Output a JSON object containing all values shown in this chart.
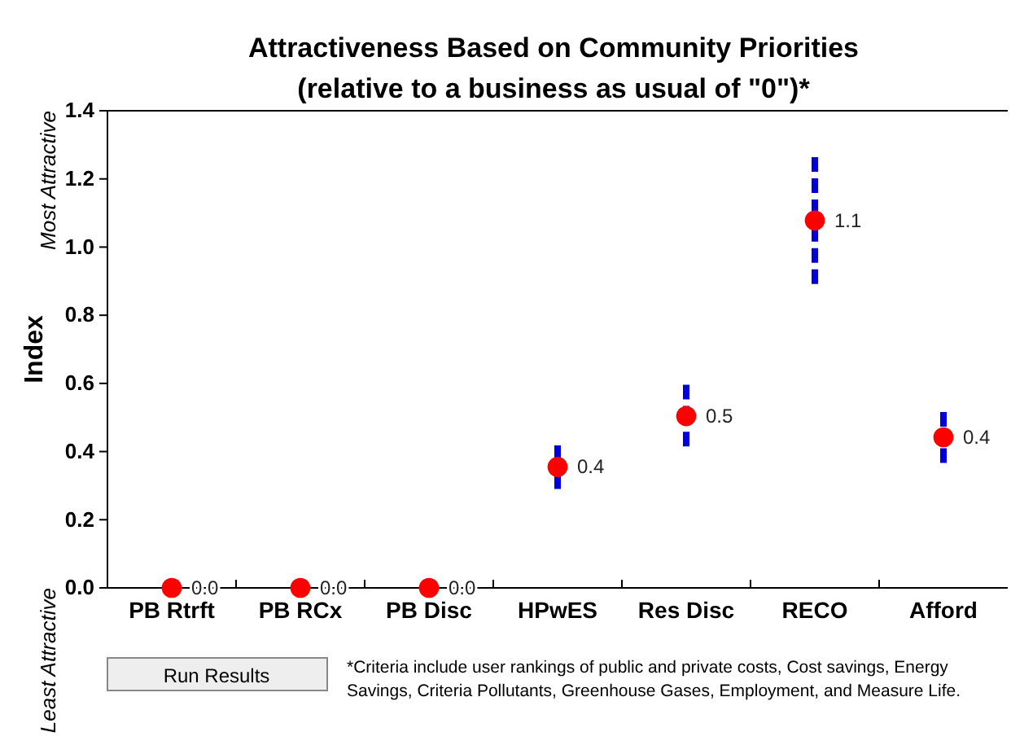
{
  "chart_data": {
    "type": "scatter",
    "title": "Attractiveness Based on Community Priorities",
    "subtitle": "(relative to a business as usual of \"0\")*",
    "ylabel": "Index",
    "categories": [
      "PB Rtrft",
      "PB RCx",
      "PB Disc",
      "HPwES",
      "Res Disc",
      "RECO",
      "Afford"
    ],
    "series": [
      {
        "color": "#ff0000",
        "values": [
          0,
          0,
          0,
          0.355,
          0.504,
          1.078,
          0.442
        ],
        "errors": [
          null,
          null,
          null,
          [
            0.29,
            0.418
          ],
          [
            0.415,
            0.596
          ],
          [
            0.892,
            1.264
          ],
          [
            0.367,
            0.516
          ]
        ],
        "value_labels": [
          "0.0",
          "0.0",
          "0.0",
          "0.4",
          "0.5",
          "1.1",
          "0.4"
        ]
      }
    ],
    "ylim": [
      0,
      1.4
    ],
    "yticks": [
      {
        "value": 0,
        "label": "0.0"
      },
      {
        "value": 0.2,
        "label": "0.2"
      },
      {
        "value": 0.4,
        "label": "0.4"
      },
      {
        "value": 0.6,
        "label": "0.6"
      },
      {
        "value": 0.8,
        "label": "0.8"
      },
      {
        "value": 1,
        "label": "1.0"
      },
      {
        "value": 1.2,
        "label": "1.2"
      },
      {
        "value": 1.4,
        "label": "1.4"
      }
    ],
    "marker": "circle",
    "grid": false,
    "annotations": [
      "Most Attractive",
      "Least Attractive",
      "Run Results",
      "*Criteria include user rankings of public and private costs, Cost savings, Energy Savings, Criteria Pollutants, Greenhouse Gases, Employment, and Measure Life."
    ]
  }
}
